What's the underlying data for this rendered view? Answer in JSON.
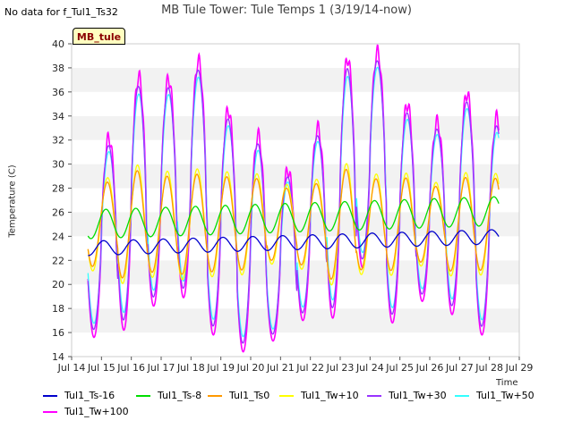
{
  "header": {
    "no_data_note": "No data for f_Tul1_Ts32",
    "title": "MB Tule Tower: Tule Temps 1 (3/19/14-now)",
    "site_tag": "MB_tule"
  },
  "chart_data": {
    "type": "line",
    "title": "MB Tule Tower: Tule Temps 1 (3/19/14-now)",
    "xlabel": "Time",
    "ylabel": "Temperature (C)",
    "xlim": [
      14,
      29
    ],
    "ylim": [
      14,
      40
    ],
    "x_ticks": [
      14,
      15,
      16,
      17,
      18,
      19,
      20,
      21,
      22,
      23,
      24,
      25,
      26,
      27,
      28,
      29
    ],
    "x_tick_labels": [
      "Jul 14",
      "Jul 15",
      "Jul 16",
      "Jul 17",
      "Jul 18",
      "Jul 19",
      "Jul 20",
      "Jul 21",
      "Jul 22",
      "Jul 23",
      "Jul 24",
      "Jul 25",
      "Jul 26",
      "Jul 27",
      "Jul 28",
      "Jul 29"
    ],
    "y_ticks": [
      14,
      16,
      18,
      20,
      22,
      24,
      26,
      28,
      30,
      32,
      34,
      36,
      38,
      40
    ],
    "y_tick_labels": [
      "14",
      "16",
      "18",
      "20",
      "22",
      "24",
      "26",
      "28",
      "30",
      "32",
      "34",
      "36",
      "38",
      "40"
    ],
    "grid": "alternating horizontal bands",
    "legend_position": "bottom",
    "day_start": 14.55,
    "day_end": 28.32,
    "daily_max": [
      32.2,
      37.3,
      37.1,
      38.6,
      34.5,
      32.4,
      29.5,
      33.0,
      38.8,
      39.3,
      35.0,
      33.5,
      35.9,
      33.9,
      32.6
    ],
    "daily_min": [
      15.6,
      16.2,
      18.2,
      18.9,
      15.8,
      14.4,
      15.3,
      17.0,
      17.2,
      21.4,
      16.8,
      18.6,
      17.5,
      15.8,
      17.9
    ],
    "series": [
      {
        "name": "Tul1_Ts-16",
        "color": "#0000cc",
        "mean": 23.0,
        "amp": 0.6,
        "lag": 0.08,
        "trend": 0.07
      },
      {
        "name": "Tul1_Ts-8",
        "color": "#00dd00",
        "mean": 25.0,
        "amp": 1.2,
        "lag": 0.0,
        "trend": 0.08
      },
      {
        "name": "Tul1_Ts0",
        "color": "#ff9900",
        "mean": 25.0,
        "amp": 3.8,
        "lag": -0.05,
        "trend": 0.0
      },
      {
        "name": "Tul1_Tw+10",
        "color": "#ffff00",
        "mean": 25.0,
        "amp": 4.2,
        "lag": -0.06,
        "trend": 0.0
      },
      {
        "name": "Tul1_Tw+30",
        "color": "#9933ff",
        "mean": 25.0,
        "amp": 0.92,
        "lag": -0.09,
        "trend": 0.0
      },
      {
        "name": "Tul1_Tw+50",
        "color": "#33ffff",
        "mean": 25.0,
        "amp": 0.86,
        "lag": -0.1,
        "trend": 0.0
      },
      {
        "name": "Tul1_Tw+100",
        "color": "#ff00ff",
        "mean": 25.0,
        "amp": 1.0,
        "lag": -0.1,
        "trend": 0.0
      }
    ]
  }
}
